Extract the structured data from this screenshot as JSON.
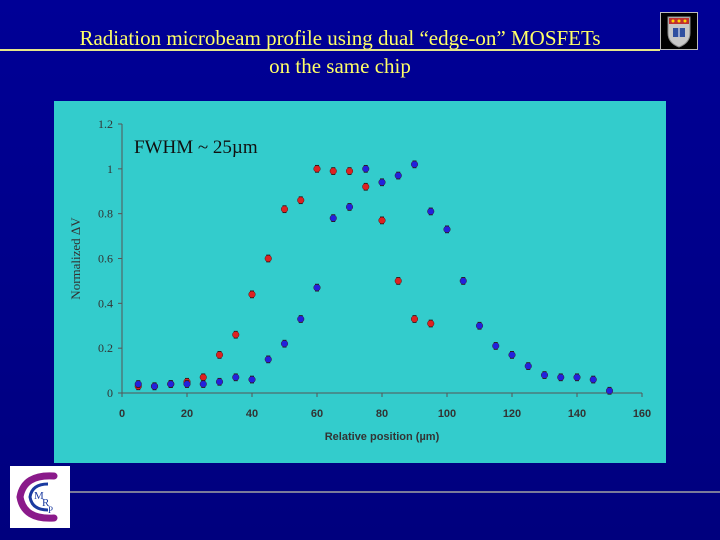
{
  "slide": {
    "title_line1": "Radiation microbeam profile using dual “edge-on” MOSFETs",
    "title_line2": "on the same chip",
    "logo_text": "CMRP"
  },
  "colors": {
    "background": "#00008a",
    "title": "#ffff66",
    "plot_panel": "#33cccc",
    "series_red": "#dd2222",
    "series_blue": "#2222dd"
  },
  "chart_data": {
    "type": "scatter",
    "annotation": "FWHM ~ 25µm",
    "xlabel": "Relative position (µm)",
    "ylabel": "Normalized ΔV",
    "xlim": [
      0,
      160
    ],
    "ylim": [
      0,
      1.2
    ],
    "xticks": [
      "0",
      "20",
      "40",
      "60",
      "80",
      "100",
      "120",
      "140",
      "160"
    ],
    "yticks": [
      "0",
      "0.2",
      "0.4",
      "0.6",
      "0.8",
      "1",
      "1.2"
    ],
    "grid": false,
    "legend": "none",
    "error_bar": 0.015,
    "series": [
      {
        "color": "#dd2222",
        "x": [
          5,
          10,
          15,
          20,
          25,
          30,
          35,
          40,
          45,
          50,
          55,
          60,
          65,
          70,
          75,
          80,
          85,
          90,
          95
        ],
        "y": [
          0.03,
          0.03,
          0.04,
          0.05,
          0.07,
          0.17,
          0.26,
          0.44,
          0.6,
          0.82,
          0.86,
          1.0,
          0.99,
          0.99,
          0.92,
          0.77,
          0.5,
          0.33,
          0.31
        ]
      },
      {
        "color": "#2222dd",
        "x": [
          5,
          10,
          15,
          20,
          25,
          30,
          35,
          40,
          45,
          50,
          55,
          60,
          65,
          70,
          75,
          80,
          85,
          90,
          95,
          100,
          105,
          110,
          115,
          120,
          125,
          130,
          135,
          140,
          145,
          150
        ],
        "y": [
          0.04,
          0.03,
          0.04,
          0.04,
          0.04,
          0.05,
          0.07,
          0.06,
          0.15,
          0.22,
          0.33,
          0.47,
          0.78,
          0.83,
          1.0,
          0.94,
          0.97,
          1.02,
          0.81,
          0.73,
          0.5,
          0.3,
          0.21,
          0.17,
          0.12,
          0.08,
          0.07,
          0.07,
          0.06,
          0.01
        ]
      }
    ]
  }
}
